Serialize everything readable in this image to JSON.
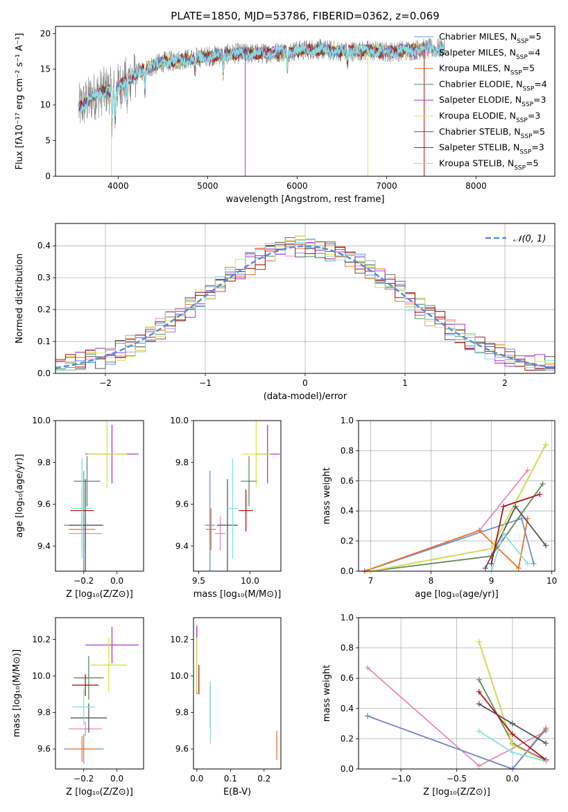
{
  "title": "PLATE=1850, MJD=53786, FIBERID=0362, z=0.069",
  "colors": {
    "chabrier_miles": "#6c8fd6",
    "salpeter_miles": "#e889b8",
    "kroupa_miles": "#e8742a",
    "chabrier_elodie": "#5f8a5f",
    "salpeter_elodie": "#a03cc8",
    "kroupa_elodie": "#d8e34a",
    "chabrier_stelib": "#555555",
    "salpeter_stelib": "#b01515",
    "kroupa_stelib": "#8adede",
    "data_gray": "#808080"
  },
  "chart_data": [
    {
      "id": "spectrum",
      "type": "line",
      "xlabel": "wavelength [Angstrom, rest frame]",
      "ylabel": "Flux [fλ10⁻¹⁷ erg cm⁻² s⁻¹ A⁻¹]",
      "xlim": [
        3300,
        8880
      ],
      "ylim": [
        0,
        21
      ],
      "xticks": [
        4000,
        5000,
        6000,
        7000,
        8000
      ],
      "yticks": [
        0,
        5,
        10,
        15,
        20
      ],
      "continuum": {
        "x": [
          3560,
          3700,
          3850,
          3950,
          4100,
          4300,
          4500,
          4800,
          5000,
          5300,
          5600,
          5900,
          6200,
          6500,
          6800,
          7000,
          7200,
          7400,
          7600,
          7650
        ],
        "y": [
          9.5,
          11.0,
          12.0,
          12.0,
          13.5,
          15.0,
          16.0,
          16.5,
          16.8,
          17.2,
          17.2,
          17.5,
          17.8,
          17.5,
          17.6,
          17.4,
          17.6,
          17.8,
          17.9,
          18.0
        ]
      },
      "absorptions": [
        {
          "x": 3933,
          "depth": 4
        },
        {
          "x": 3968,
          "depth": 4
        },
        {
          "x": 4101,
          "depth": 3
        },
        {
          "x": 4300,
          "depth": 3
        },
        {
          "x": 4861,
          "depth": 2
        },
        {
          "x": 5175,
          "depth": 2.5
        },
        {
          "x": 5890,
          "depth": 2
        },
        {
          "x": 6563,
          "depth": 2
        }
      ],
      "legend": [
        {
          "label": "Chabrier MILES, N",
          "sub": "SSP",
          "suffix": "=5",
          "color_key": "chabrier_miles"
        },
        {
          "label": "Salpeter MILES, N",
          "sub": "SSP",
          "suffix": "=4",
          "color_key": "salpeter_miles"
        },
        {
          "label": "Kroupa MILES, N",
          "sub": "SSP",
          "suffix": "=5",
          "color_key": "kroupa_miles"
        },
        {
          "label": "Chabrier ELODIE, N",
          "sub": "SSP",
          "suffix": "=4",
          "color_key": "chabrier_elodie"
        },
        {
          "label": "Salpeter ELODIE, N",
          "sub": "SSP",
          "suffix": "=3",
          "color_key": "salpeter_elodie"
        },
        {
          "label": "Kroupa ELODIE, N",
          "sub": "SSP",
          "suffix": "=3",
          "color_key": "kroupa_elodie"
        },
        {
          "label": "Chabrier STELIB, N",
          "sub": "SSP",
          "suffix": "=5",
          "color_key": "chabrier_stelib"
        },
        {
          "label": "Salpeter STELIB, N",
          "sub": "SSP",
          "suffix": "=3",
          "color_key": "salpeter_stelib"
        },
        {
          "label": "Kroupa STELIB, N",
          "sub": "SSP",
          "suffix": "=5",
          "color_key": "kroupa_stelib"
        }
      ],
      "legend_position": "top-right"
    },
    {
      "id": "residuals",
      "type": "step",
      "xlabel": "(data-model)/error",
      "ylabel": "Normed distribution",
      "xlim": [
        -2.5,
        2.5
      ],
      "ylim": [
        0,
        0.47
      ],
      "xticks": [
        -2,
        -1,
        0,
        1,
        2
      ],
      "yticks": [
        0.0,
        0.1,
        0.2,
        0.3,
        0.4
      ],
      "grid": true,
      "bin_width": 0.1,
      "bin_start": -2.5,
      "reference": {
        "label": "𝒩(0, 1)",
        "style": "dashed",
        "color": "#5b8bd9"
      },
      "legend_position": "top-right"
    },
    {
      "id": "age_vs_z",
      "type": "errorbar",
      "xlabel": "Z [log₁₀(Z/Z⊙)]",
      "ylabel": "age  [log₁₀(age/yr)]",
      "xlim": [
        -0.37,
        0.16
      ],
      "ylim": [
        9.28,
        10.0
      ],
      "xticks": [
        -0.2,
        0.0
      ],
      "yticks": [
        9.4,
        9.6,
        9.8,
        10.0
      ],
      "points": [
        {
          "key": "chabrier_miles",
          "x": -0.2,
          "y": 9.5,
          "xerr": 0.12,
          "yerr": 0.26
        },
        {
          "key": "salpeter_miles",
          "x": -0.19,
          "y": 9.46,
          "xerr": 0.1,
          "yerr": 0.08
        },
        {
          "key": "kroupa_miles",
          "x": -0.21,
          "y": 9.48,
          "xerr": 0.08,
          "yerr": 0.1
        },
        {
          "key": "chabrier_elodie",
          "x": -0.18,
          "y": 9.71,
          "xerr": 0.08,
          "yerr": 0.12
        },
        {
          "key": "salpeter_elodie",
          "x": -0.03,
          "y": 9.84,
          "xerr": 0.16,
          "yerr": 0.14
        },
        {
          "key": "kroupa_elodie",
          "x": -0.06,
          "y": 9.84,
          "xerr": 0.12,
          "yerr": 0.16
        },
        {
          "key": "chabrier_stelib",
          "x": -0.19,
          "y": 9.5,
          "xerr": 0.1,
          "yerr": 0.22
        },
        {
          "key": "salpeter_stelib",
          "x": -0.21,
          "y": 9.57,
          "xerr": 0.07,
          "yerr": 0.1
        },
        {
          "key": "kroupa_stelib",
          "x": -0.21,
          "y": 9.58,
          "xerr": 0.06,
          "yerr": 0.24
        }
      ]
    },
    {
      "id": "age_vs_mass",
      "type": "errorbar",
      "xlabel": "mass [log₁₀(M/M⊙)]",
      "ylabel": "",
      "xlim": [
        9.45,
        10.3
      ],
      "ylim": [
        9.28,
        10.0
      ],
      "xticks": [
        9.5,
        10.0
      ],
      "yticks": [
        9.4,
        9.6,
        9.8,
        10.0
      ],
      "points": [
        {
          "key": "chabrier_miles",
          "x": 9.61,
          "y": 9.5,
          "xerr": 0.05,
          "yerr": 0.26
        },
        {
          "key": "salpeter_miles",
          "x": 9.71,
          "y": 9.46,
          "xerr": 0.05,
          "yerr": 0.08
        },
        {
          "key": "kroupa_miles",
          "x": 9.62,
          "y": 9.48,
          "xerr": 0.05,
          "yerr": 0.1
        },
        {
          "key": "chabrier_elodie",
          "x": 9.99,
          "y": 9.71,
          "xerr": 0.08,
          "yerr": 0.12
        },
        {
          "key": "salpeter_elodie",
          "x": 10.17,
          "y": 9.84,
          "xerr": 0.12,
          "yerr": 0.14
        },
        {
          "key": "kroupa_elodie",
          "x": 10.06,
          "y": 9.84,
          "xerr": 0.14,
          "yerr": 0.16
        },
        {
          "key": "chabrier_stelib",
          "x": 9.78,
          "y": 9.5,
          "xerr": 0.1,
          "yerr": 0.22
        },
        {
          "key": "salpeter_stelib",
          "x": 9.96,
          "y": 9.57,
          "xerr": 0.07,
          "yerr": 0.1
        },
        {
          "key": "kroupa_stelib",
          "x": 9.83,
          "y": 9.58,
          "xerr": 0.06,
          "yerr": 0.24
        }
      ]
    },
    {
      "id": "weight_vs_age",
      "type": "line",
      "xlabel": "age  [log₁₀(age/yr)]",
      "ylabel": "mass weight",
      "xlim": [
        6.8,
        10.05
      ],
      "ylim": [
        0.0,
        1.0
      ],
      "xticks": [
        7,
        8,
        9,
        10
      ],
      "yticks": [
        0.0,
        0.2,
        0.4,
        0.6,
        0.8,
        1.0
      ],
      "grid": true,
      "series": [
        {
          "key": "chabrier_miles",
          "x": [
            6.9,
            9.5,
            9.7
          ],
          "y": [
            0.0,
            0.35,
            0.05
          ]
        },
        {
          "key": "salpeter_miles",
          "x": [
            6.9,
            8.8,
            9.6
          ],
          "y": [
            0.0,
            0.27,
            0.67
          ]
        },
        {
          "key": "kroupa_miles",
          "x": [
            6.9,
            8.8,
            9.45,
            9.6
          ],
          "y": [
            0.0,
            0.27,
            0.02,
            0.35
          ]
        },
        {
          "key": "chabrier_elodie",
          "x": [
            7.0,
            9.0,
            9.85
          ],
          "y": [
            0.0,
            0.1,
            0.58
          ]
        },
        {
          "key": "salpeter_elodie",
          "x": [
            7.0,
            9.0,
            9.9
          ],
          "y": [
            0.0,
            0.15,
            0.84
          ]
        },
        {
          "key": "kroupa_elodie",
          "x": [
            7.0,
            9.0,
            9.9
          ],
          "y": [
            0.0,
            0.15,
            0.84
          ]
        },
        {
          "key": "chabrier_stelib",
          "x": [
            8.9,
            9.4,
            9.9
          ],
          "y": [
            0.02,
            0.43,
            0.17
          ]
        },
        {
          "key": "salpeter_stelib",
          "x": [
            9.0,
            9.2,
            9.8
          ],
          "y": [
            0.05,
            0.43,
            0.51
          ]
        },
        {
          "key": "kroupa_stelib",
          "x": [
            9.0,
            9.2,
            9.6
          ],
          "y": [
            0.0,
            0.25,
            0.05
          ]
        }
      ]
    },
    {
      "id": "mass_vs_z",
      "type": "errorbar",
      "xlabel": "Z [log₁₀(Z/Z⊙)]",
      "ylabel": "mass [log₁₀(M/M⊙)]",
      "xlim": [
        -0.37,
        0.16
      ],
      "ylim": [
        9.49,
        10.32
      ],
      "xticks": [
        -0.2,
        0.0
      ],
      "yticks": [
        9.6,
        9.8,
        10.0,
        10.2
      ],
      "points": [
        {
          "key": "chabrier_miles",
          "x": -0.2,
          "y": 9.6,
          "xerr": 0.12,
          "yerr": 0.08
        },
        {
          "key": "salpeter_miles",
          "x": -0.19,
          "y": 9.71,
          "xerr": 0.1,
          "yerr": 0.04
        },
        {
          "key": "kroupa_miles",
          "x": -0.21,
          "y": 9.6,
          "xerr": 0.08,
          "yerr": 0.07
        },
        {
          "key": "chabrier_elodie",
          "x": -0.17,
          "y": 9.99,
          "xerr": 0.09,
          "yerr": 0.12
        },
        {
          "key": "salpeter_elodie",
          "x": -0.03,
          "y": 10.17,
          "xerr": 0.16,
          "yerr": 0.1
        },
        {
          "key": "kroupa_elodie",
          "x": -0.05,
          "y": 10.06,
          "xerr": 0.11,
          "yerr": 0.15
        },
        {
          "key": "chabrier_stelib",
          "x": -0.17,
          "y": 9.77,
          "xerr": 0.11,
          "yerr": 0.08
        },
        {
          "key": "salpeter_stelib",
          "x": -0.19,
          "y": 9.95,
          "xerr": 0.08,
          "yerr": 0.06
        },
        {
          "key": "kroupa_stelib",
          "x": -0.2,
          "y": 9.83,
          "xerr": 0.07,
          "yerr": 0.1
        }
      ]
    },
    {
      "id": "mass_vs_ebv",
      "type": "errorbar",
      "xlabel": "E(B-V)",
      "ylabel": "",
      "xlim": [
        -0.01,
        0.25
      ],
      "ylim": [
        9.49,
        10.32
      ],
      "xticks": [
        0.0,
        0.1,
        0.2
      ],
      "yticks": [
        9.6,
        9.8,
        10.0,
        10.2
      ],
      "points": [
        {
          "key": "chabrier_miles",
          "x": 0.0,
          "y": 10.2,
          "xerr": 0.0,
          "yerr": 0.08
        },
        {
          "key": "salpeter_miles",
          "x": 0.0,
          "y": 10.15,
          "xerr": 0.0,
          "yerr": 0.12
        },
        {
          "key": "kroupa_miles",
          "x": 0.238,
          "y": 9.62,
          "xerr": 0.0,
          "yerr": 0.08
        },
        {
          "key": "chabrier_elodie",
          "x": 0.0,
          "y": 10.05,
          "xerr": 0.0,
          "yerr": 0.15
        },
        {
          "key": "salpeter_elodie",
          "x": 0.0,
          "y": 10.17,
          "xerr": 0.0,
          "yerr": 0.1
        },
        {
          "key": "kroupa_elodie",
          "x": 0.0,
          "y": 10.06,
          "xerr": 0.0,
          "yerr": 0.15
        },
        {
          "key": "chabrier_stelib",
          "x": 0.04,
          "y": 9.83,
          "xerr": 0.0,
          "yerr": 0.12
        },
        {
          "key": "salpeter_stelib",
          "x": 0.006,
          "y": 9.98,
          "xerr": 0.0,
          "yerr": 0.08
        },
        {
          "key": "kroupa_stelib",
          "x": 0.04,
          "y": 9.8,
          "xerr": 0.0,
          "yerr": 0.17
        }
      ]
    },
    {
      "id": "weight_vs_z",
      "type": "line",
      "xlabel": "Z [log₁₀(Z/Z⊙)]",
      "ylabel": "mass weight",
      "xlim": [
        -1.38,
        0.38
      ],
      "ylim": [
        0.0,
        1.0
      ],
      "xticks": [
        -1.0,
        -0.5,
        0.0
      ],
      "yticks": [
        0.0,
        0.2,
        0.4,
        0.6,
        0.8,
        1.0
      ],
      "grid": true,
      "series": [
        {
          "key": "salpeter_miles",
          "x": [
            -1.3,
            -0.3,
            0.3
          ],
          "y": [
            0.67,
            0.02,
            0.25
          ]
        },
        {
          "key": "kroupa_miles",
          "x": [
            -1.3,
            0.0,
            0.3
          ],
          "y": [
            0.35,
            0.0,
            0.27
          ]
        },
        {
          "key": "chabrier_miles",
          "x": [
            -1.3,
            0.0,
            0.3
          ],
          "y": [
            0.35,
            0.0,
            0.26
          ]
        },
        {
          "key": "chabrier_elodie",
          "x": [
            -0.3,
            0.0,
            0.3
          ],
          "y": [
            0.59,
            0.17,
            0.05
          ]
        },
        {
          "key": "salpeter_elodie",
          "x": [
            -0.3,
            0.0,
            0.3
          ],
          "y": [
            0.84,
            0.16,
            0.06
          ]
        },
        {
          "key": "kroupa_elodie",
          "x": [
            -0.3,
            0.0,
            0.3
          ],
          "y": [
            0.84,
            0.16,
            0.05
          ]
        },
        {
          "key": "chabrier_stelib",
          "x": [
            -0.3,
            0.0,
            0.3
          ],
          "y": [
            0.43,
            0.3,
            0.17
          ]
        },
        {
          "key": "salpeter_stelib",
          "x": [
            -0.3,
            0.0,
            0.3
          ],
          "y": [
            0.51,
            0.23,
            0.06
          ]
        },
        {
          "key": "kroupa_stelib",
          "x": [
            -0.3,
            0.0,
            0.3
          ],
          "y": [
            0.25,
            0.11,
            0.05
          ]
        }
      ]
    }
  ]
}
